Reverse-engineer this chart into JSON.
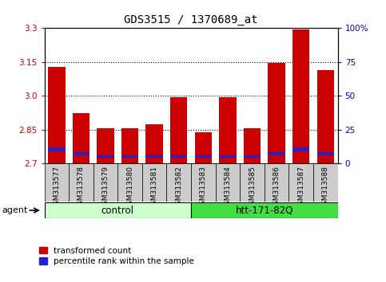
{
  "title": "GDS3515 / 1370689_at",
  "samples": [
    "GSM313577",
    "GSM313578",
    "GSM313579",
    "GSM313580",
    "GSM313581",
    "GSM313582",
    "GSM313583",
    "GSM313584",
    "GSM313585",
    "GSM313586",
    "GSM313587",
    "GSM313588"
  ],
  "red_values": [
    3.13,
    2.925,
    2.855,
    2.855,
    2.875,
    2.995,
    2.84,
    2.995,
    2.855,
    3.145,
    3.295,
    3.115
  ],
  "blue_bottom": [
    2.755,
    2.735,
    2.725,
    2.725,
    2.725,
    2.725,
    2.725,
    2.725,
    2.725,
    2.735,
    2.755,
    2.735
  ],
  "blue_height": [
    0.018,
    0.015,
    0.012,
    0.012,
    0.012,
    0.012,
    0.012,
    0.012,
    0.012,
    0.015,
    0.018,
    0.015
  ],
  "ymin": 2.7,
  "ymax": 3.3,
  "yticks_left": [
    2.7,
    2.85,
    3.0,
    3.15,
    3.3
  ],
  "yticks_right": [
    0,
    25,
    50,
    75,
    100
  ],
  "dotted_lines": [
    2.85,
    3.0,
    3.15
  ],
  "bar_width": 0.7,
  "red_color": "#CC0000",
  "blue_color": "#2222CC",
  "control_color": "#ccffcc",
  "htt_color": "#44dd44",
  "legend_red": "transformed count",
  "legend_blue": "percentile rank within the sample",
  "left_tick_color": "#CC0000",
  "right_tick_color": "#0000CC",
  "bar_base": 2.7,
  "gray_bg": "#cccccc"
}
